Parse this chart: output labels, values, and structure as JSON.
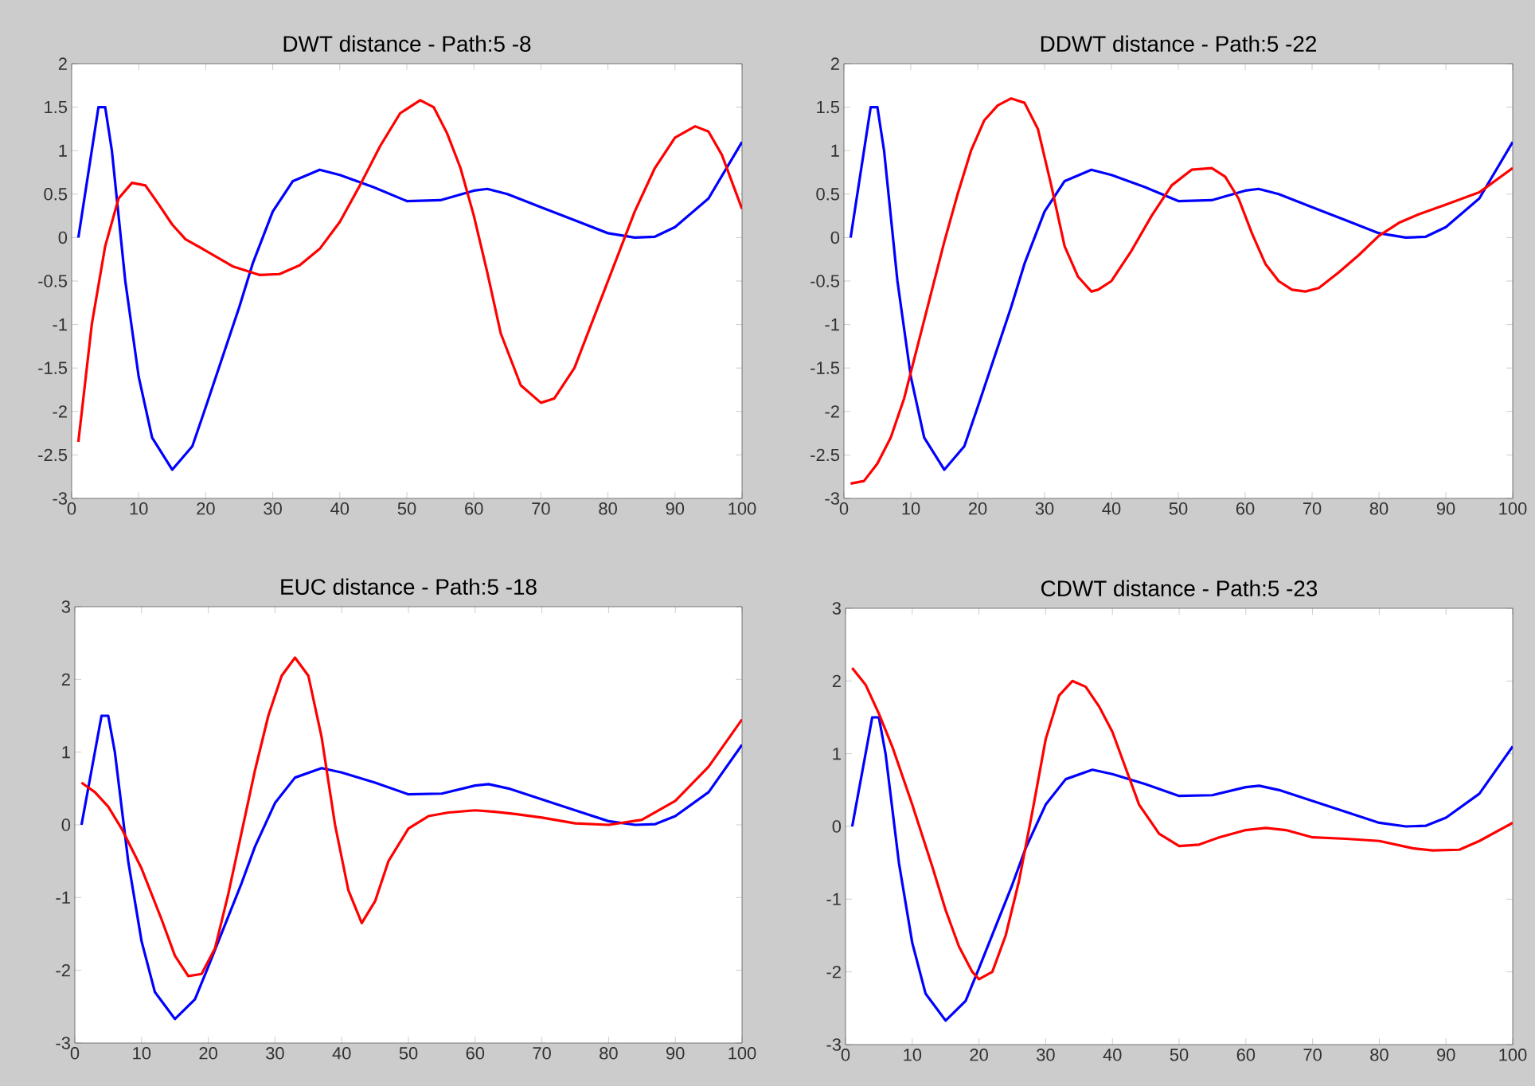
{
  "chart_data": [
    {
      "type": "line",
      "title": "DWT distance - Path:5 -8",
      "xlim": [
        0,
        100
      ],
      "xticks": [
        0,
        10,
        20,
        30,
        40,
        50,
        60,
        70,
        80,
        90,
        100
      ],
      "ylim": [
        -3,
        2
      ],
      "yticks": [
        -3,
        -2.5,
        -2,
        -1.5,
        -1,
        -0.5,
        0,
        0.5,
        1,
        1.5,
        2
      ],
      "series": [
        {
          "color": "#0000ff",
          "x": [
            1,
            3,
            4,
            5,
            6,
            8,
            10,
            12,
            15,
            18,
            20,
            25,
            27,
            30,
            33,
            37,
            40,
            45,
            50,
            55,
            60,
            62,
            65,
            70,
            75,
            80,
            84,
            87,
            90,
            95,
            100
          ],
          "values": [
            0,
            1.0,
            1.5,
            1.5,
            1.0,
            -0.5,
            -1.6,
            -2.3,
            -2.67,
            -2.4,
            -1.95,
            -0.8,
            -0.3,
            0.3,
            0.65,
            0.78,
            0.72,
            0.58,
            0.42,
            0.43,
            0.54,
            0.56,
            0.5,
            0.35,
            0.2,
            0.05,
            0.0,
            0.01,
            0.12,
            0.45,
            1.1
          ]
        },
        {
          "color": "#ff0000",
          "x": [
            1,
            3,
            5,
            7,
            9,
            11,
            13,
            15,
            17,
            20,
            24,
            28,
            31,
            34,
            37,
            40,
            43,
            46,
            49,
            52,
            54,
            56,
            58,
            60,
            62,
            64,
            67,
            70,
            72,
            75,
            78,
            81,
            84,
            87,
            90,
            93,
            95,
            97,
            100
          ],
          "values": [
            -2.35,
            -1.0,
            -0.1,
            0.45,
            0.63,
            0.6,
            0.38,
            0.15,
            -0.02,
            -0.15,
            -0.33,
            -0.43,
            -0.42,
            -0.32,
            -0.13,
            0.18,
            0.6,
            1.05,
            1.43,
            1.58,
            1.5,
            1.2,
            0.8,
            0.25,
            -0.4,
            -1.1,
            -1.7,
            -1.9,
            -1.85,
            -1.5,
            -0.9,
            -0.3,
            0.3,
            0.8,
            1.15,
            1.28,
            1.22,
            0.95,
            0.33
          ]
        }
      ]
    },
    {
      "type": "line",
      "title": "DDWT distance - Path:5 -22",
      "xlim": [
        0,
        100
      ],
      "xticks": [
        0,
        10,
        20,
        30,
        40,
        50,
        60,
        70,
        80,
        90,
        100
      ],
      "ylim": [
        -3,
        2
      ],
      "yticks": [
        -3,
        -2.5,
        -2,
        -1.5,
        -1,
        -0.5,
        0,
        0.5,
        1,
        1.5,
        2
      ],
      "series": [
        {
          "color": "#0000ff",
          "x": [
            1,
            3,
            4,
            5,
            6,
            8,
            10,
            12,
            15,
            18,
            20,
            25,
            27,
            30,
            33,
            37,
            40,
            45,
            50,
            55,
            60,
            62,
            65,
            70,
            75,
            80,
            84,
            87,
            90,
            95,
            100
          ],
          "values": [
            0,
            1.0,
            1.5,
            1.5,
            1.0,
            -0.5,
            -1.6,
            -2.3,
            -2.67,
            -2.4,
            -1.95,
            -0.8,
            -0.3,
            0.3,
            0.65,
            0.78,
            0.72,
            0.58,
            0.42,
            0.43,
            0.54,
            0.56,
            0.5,
            0.35,
            0.2,
            0.05,
            0.0,
            0.01,
            0.12,
            0.45,
            1.1
          ]
        },
        {
          "color": "#ff0000",
          "x": [
            1,
            3,
            5,
            7,
            9,
            11,
            13,
            15,
            17,
            19,
            21,
            23,
            25,
            27,
            29,
            31,
            33,
            35,
            37,
            38,
            40,
            43,
            46,
            49,
            52,
            55,
            57,
            59,
            61,
            63,
            65,
            67,
            69,
            71,
            74,
            77,
            80,
            83,
            86,
            90,
            95,
            100
          ],
          "values": [
            -2.83,
            -2.8,
            -2.6,
            -2.3,
            -1.85,
            -1.25,
            -0.65,
            -0.05,
            0.5,
            1.0,
            1.35,
            1.52,
            1.6,
            1.55,
            1.25,
            0.6,
            -0.1,
            -0.45,
            -0.62,
            -0.6,
            -0.5,
            -0.15,
            0.25,
            0.6,
            0.78,
            0.8,
            0.7,
            0.45,
            0.05,
            -0.3,
            -0.5,
            -0.6,
            -0.62,
            -0.58,
            -0.4,
            -0.2,
            0.02,
            0.17,
            0.27,
            0.38,
            0.52,
            0.8
          ]
        }
      ]
    },
    {
      "type": "line",
      "title": "EUC distance - Path:5 -18",
      "xlim": [
        0,
        100
      ],
      "xticks": [
        0,
        10,
        20,
        30,
        40,
        50,
        60,
        70,
        80,
        90,
        100
      ],
      "ylim": [
        -3,
        3
      ],
      "yticks": [
        -3,
        -2,
        -1,
        0,
        1,
        2,
        3
      ],
      "series": [
        {
          "color": "#0000ff",
          "x": [
            1,
            3,
            4,
            5,
            6,
            8,
            10,
            12,
            15,
            18,
            20,
            25,
            27,
            30,
            33,
            37,
            40,
            45,
            50,
            55,
            60,
            62,
            65,
            70,
            75,
            80,
            84,
            87,
            90,
            95,
            100
          ],
          "values": [
            0,
            1.0,
            1.5,
            1.5,
            1.0,
            -0.5,
            -1.6,
            -2.3,
            -2.67,
            -2.4,
            -1.95,
            -0.8,
            -0.3,
            0.3,
            0.65,
            0.78,
            0.72,
            0.58,
            0.42,
            0.43,
            0.54,
            0.56,
            0.5,
            0.35,
            0.2,
            0.05,
            0.0,
            0.01,
            0.12,
            0.45,
            1.1
          ]
        },
        {
          "color": "#ff0000",
          "x": [
            1,
            3,
            5,
            7,
            10,
            13,
            15,
            17,
            19,
            21,
            23,
            25,
            27,
            29,
            31,
            33,
            35,
            37,
            39,
            41,
            43,
            45,
            47,
            50,
            53,
            56,
            60,
            63,
            66,
            70,
            75,
            80,
            85,
            90,
            95,
            100
          ],
          "values": [
            0.58,
            0.45,
            0.25,
            -0.05,
            -0.6,
            -1.3,
            -1.8,
            -2.08,
            -2.05,
            -1.7,
            -0.95,
            -0.1,
            0.75,
            1.5,
            2.05,
            2.3,
            2.05,
            1.2,
            0.0,
            -0.9,
            -1.35,
            -1.05,
            -0.5,
            -0.05,
            0.12,
            0.17,
            0.2,
            0.18,
            0.15,
            0.1,
            0.02,
            0.0,
            0.07,
            0.33,
            0.8,
            1.45
          ]
        }
      ]
    },
    {
      "type": "line",
      "title": "CDWT distance - Path:5 -23",
      "xlim": [
        0,
        100
      ],
      "xticks": [
        0,
        10,
        20,
        30,
        40,
        50,
        60,
        70,
        80,
        90,
        100
      ],
      "ylim": [
        -3,
        3
      ],
      "yticks": [
        -3,
        -2,
        -1,
        0,
        1,
        2,
        3
      ],
      "series": [
        {
          "color": "#0000ff",
          "x": [
            1,
            3,
            4,
            5,
            6,
            8,
            10,
            12,
            15,
            18,
            20,
            25,
            27,
            30,
            33,
            37,
            40,
            45,
            50,
            55,
            60,
            62,
            65,
            70,
            75,
            80,
            84,
            87,
            90,
            95,
            100
          ],
          "values": [
            0,
            1.0,
            1.5,
            1.5,
            1.0,
            -0.5,
            -1.6,
            -2.3,
            -2.67,
            -2.4,
            -1.95,
            -0.8,
            -0.3,
            0.3,
            0.65,
            0.78,
            0.72,
            0.58,
            0.42,
            0.43,
            0.54,
            0.56,
            0.5,
            0.35,
            0.2,
            0.05,
            0.0,
            0.01,
            0.12,
            0.45,
            1.1
          ]
        },
        {
          "color": "#ff0000",
          "x": [
            1,
            3,
            5,
            7,
            10,
            13,
            15,
            17,
            19,
            20,
            22,
            24,
            26,
            28,
            30,
            32,
            34,
            36,
            38,
            40,
            42,
            44,
            47,
            50,
            53,
            56,
            60,
            63,
            66,
            70,
            75,
            80,
            85,
            88,
            92,
            95,
            100
          ],
          "values": [
            2.18,
            1.95,
            1.55,
            1.1,
            0.3,
            -0.55,
            -1.15,
            -1.65,
            -2.0,
            -2.1,
            -2.0,
            -1.5,
            -0.75,
            0.2,
            1.2,
            1.8,
            2.0,
            1.92,
            1.65,
            1.3,
            0.8,
            0.3,
            -0.1,
            -0.27,
            -0.25,
            -0.15,
            -0.05,
            -0.02,
            -0.05,
            -0.15,
            -0.17,
            -0.2,
            -0.3,
            -0.33,
            -0.32,
            -0.2,
            0.05
          ]
        }
      ]
    }
  ]
}
